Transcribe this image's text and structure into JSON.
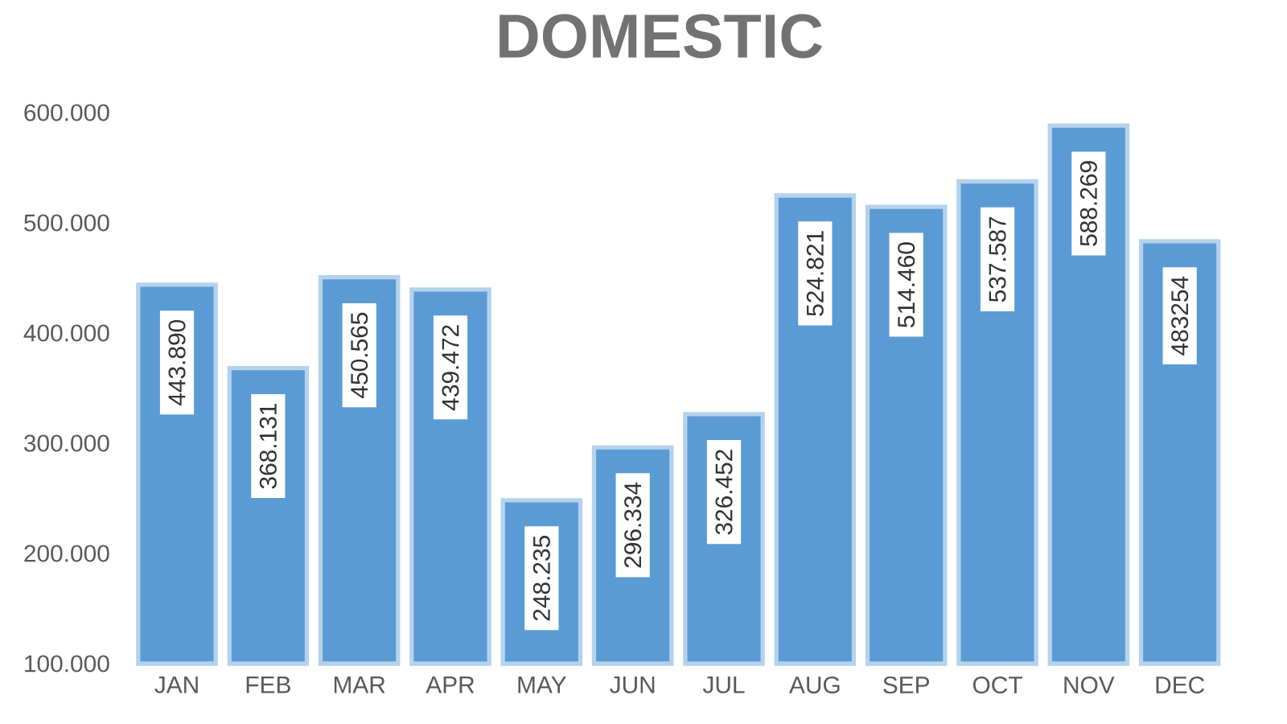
{
  "chart_data": {
    "type": "bar",
    "title": "DOMESTIC",
    "categories": [
      "JAN",
      "FEB",
      "MAR",
      "APR",
      "MAY",
      "JUN",
      "JUL",
      "AUG",
      "SEP",
      "OCT",
      "NOV",
      "DEC"
    ],
    "values": [
      443890,
      368131,
      450565,
      439472,
      248235,
      296334,
      326452,
      524821,
      514460,
      537587,
      588269,
      483254
    ],
    "value_labels": [
      "443.890",
      "368.131",
      "450.565",
      "439.472",
      "248.235",
      "296.334",
      "326.452",
      "524.821",
      "514.460",
      "537.587",
      "588.269",
      "483254"
    ],
    "color": "#5b9bd5",
    "ylim": [
      100000,
      600000
    ],
    "yticks": [
      {
        "value": 100000,
        "label": "100.000"
      },
      {
        "value": 200000,
        "label": "200.000"
      },
      {
        "value": 300000,
        "label": "300.000"
      },
      {
        "value": 400000,
        "label": "400.000"
      },
      {
        "value": 500000,
        "label": "500.000"
      },
      {
        "value": 600000,
        "label": "600.000"
      }
    ]
  }
}
